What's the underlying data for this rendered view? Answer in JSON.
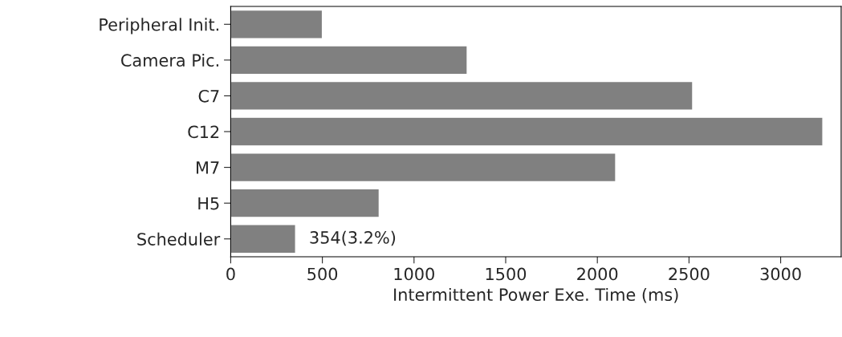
{
  "chart_data": {
    "type": "bar",
    "orientation": "horizontal",
    "xlabel": "Intermittent Power Exe. Time (ms)",
    "categories": [
      "Peripheral Init.",
      "Camera Pic.",
      "C7",
      "C12",
      "M7",
      "H5",
      "Scheduler"
    ],
    "values": [
      500,
      1290,
      2520,
      3230,
      2100,
      810,
      354
    ],
    "color": "#808080",
    "xlim": [
      0,
      3330
    ],
    "xticks": [
      0,
      500,
      1000,
      1500,
      2000,
      2500,
      3000
    ],
    "annotations": [
      {
        "text": "354(3.2%)",
        "x": 354,
        "y": "Scheduler"
      }
    ],
    "grid": false
  }
}
